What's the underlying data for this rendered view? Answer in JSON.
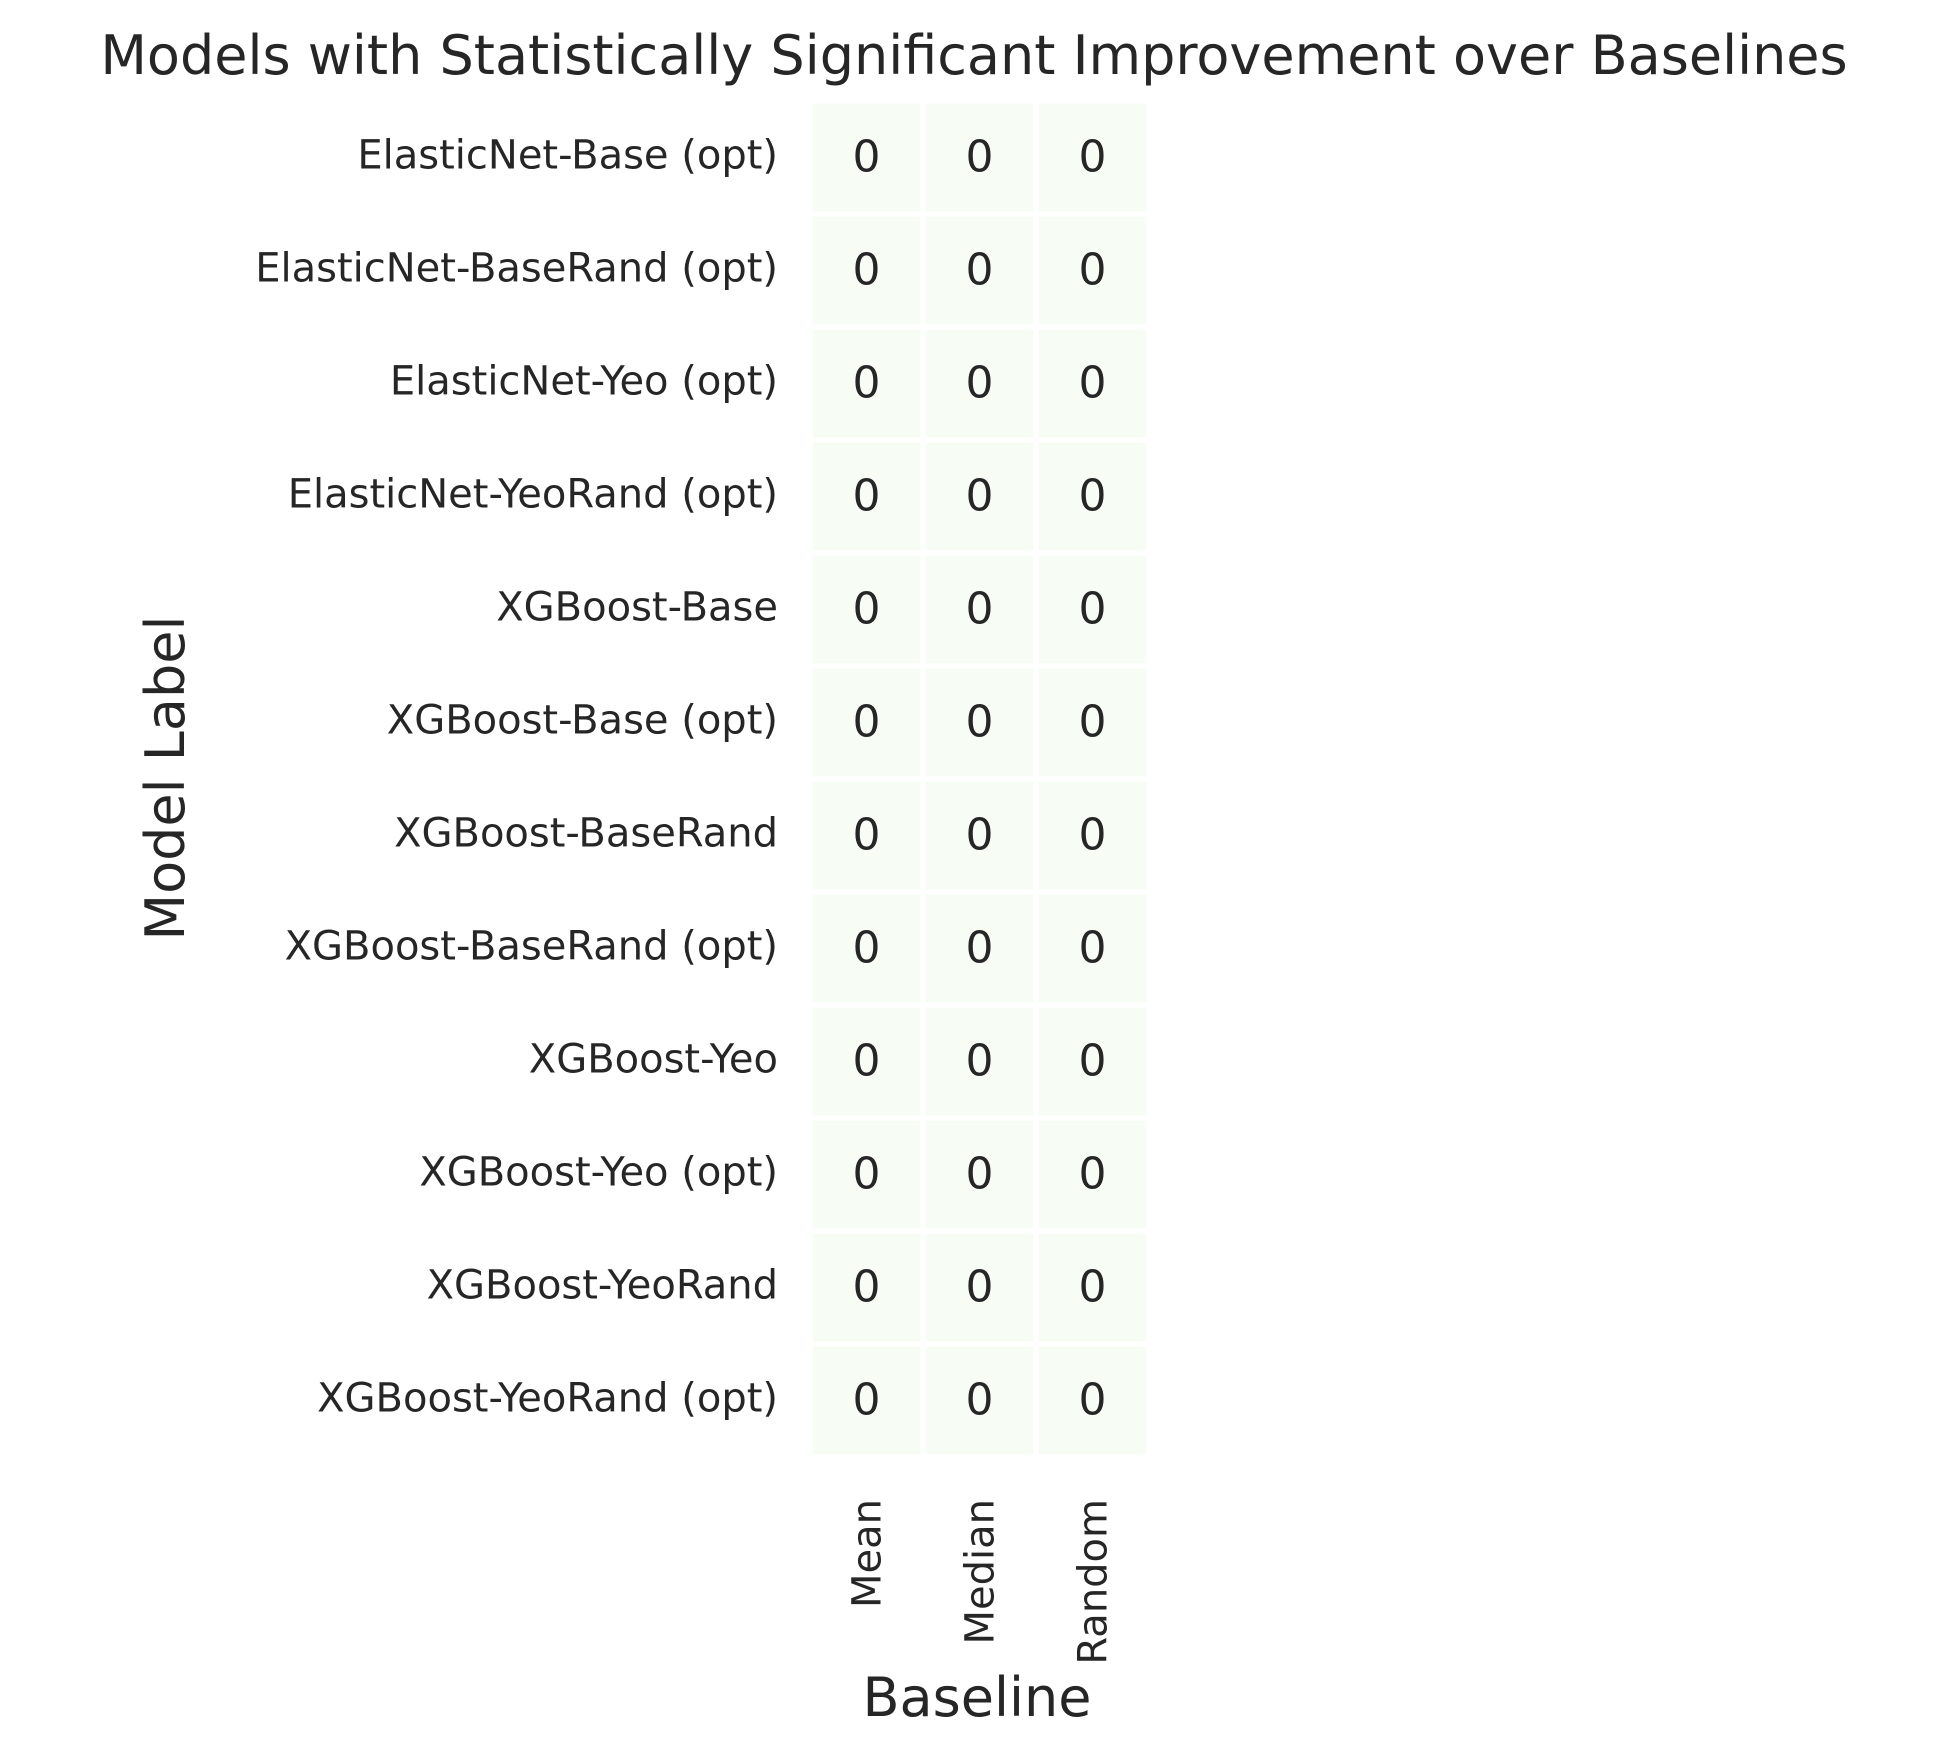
{
  "chart_data": {
    "type": "heatmap",
    "title": "Models with Statistically Significant Improvement over Baselines",
    "xlabel": "Baseline",
    "ylabel": "Model Label",
    "columns": [
      "Mean",
      "Median",
      "Random"
    ],
    "rows": [
      "ElasticNet-Base (opt)",
      "ElasticNet-BaseRand (opt)",
      "ElasticNet-Yeo (opt)",
      "ElasticNet-YeoRand (opt)",
      "XGBoost-Base",
      "XGBoost-Base (opt)",
      "XGBoost-BaseRand",
      "XGBoost-BaseRand (opt)",
      "XGBoost-Yeo",
      "XGBoost-Yeo (opt)",
      "XGBoost-YeoRand",
      "XGBoost-YeoRand (opt)"
    ],
    "values": [
      [
        0,
        0,
        0
      ],
      [
        0,
        0,
        0
      ],
      [
        0,
        0,
        0
      ],
      [
        0,
        0,
        0
      ],
      [
        0,
        0,
        0
      ],
      [
        0,
        0,
        0
      ],
      [
        0,
        0,
        0
      ],
      [
        0,
        0,
        0
      ],
      [
        0,
        0,
        0
      ],
      [
        0,
        0,
        0
      ],
      [
        0,
        0,
        0
      ],
      [
        0,
        0,
        0
      ]
    ],
    "colormap": "Greens",
    "cell_color": "#f7fcf5",
    "grid_line_color": "#ffffff",
    "colorbar": false
  }
}
